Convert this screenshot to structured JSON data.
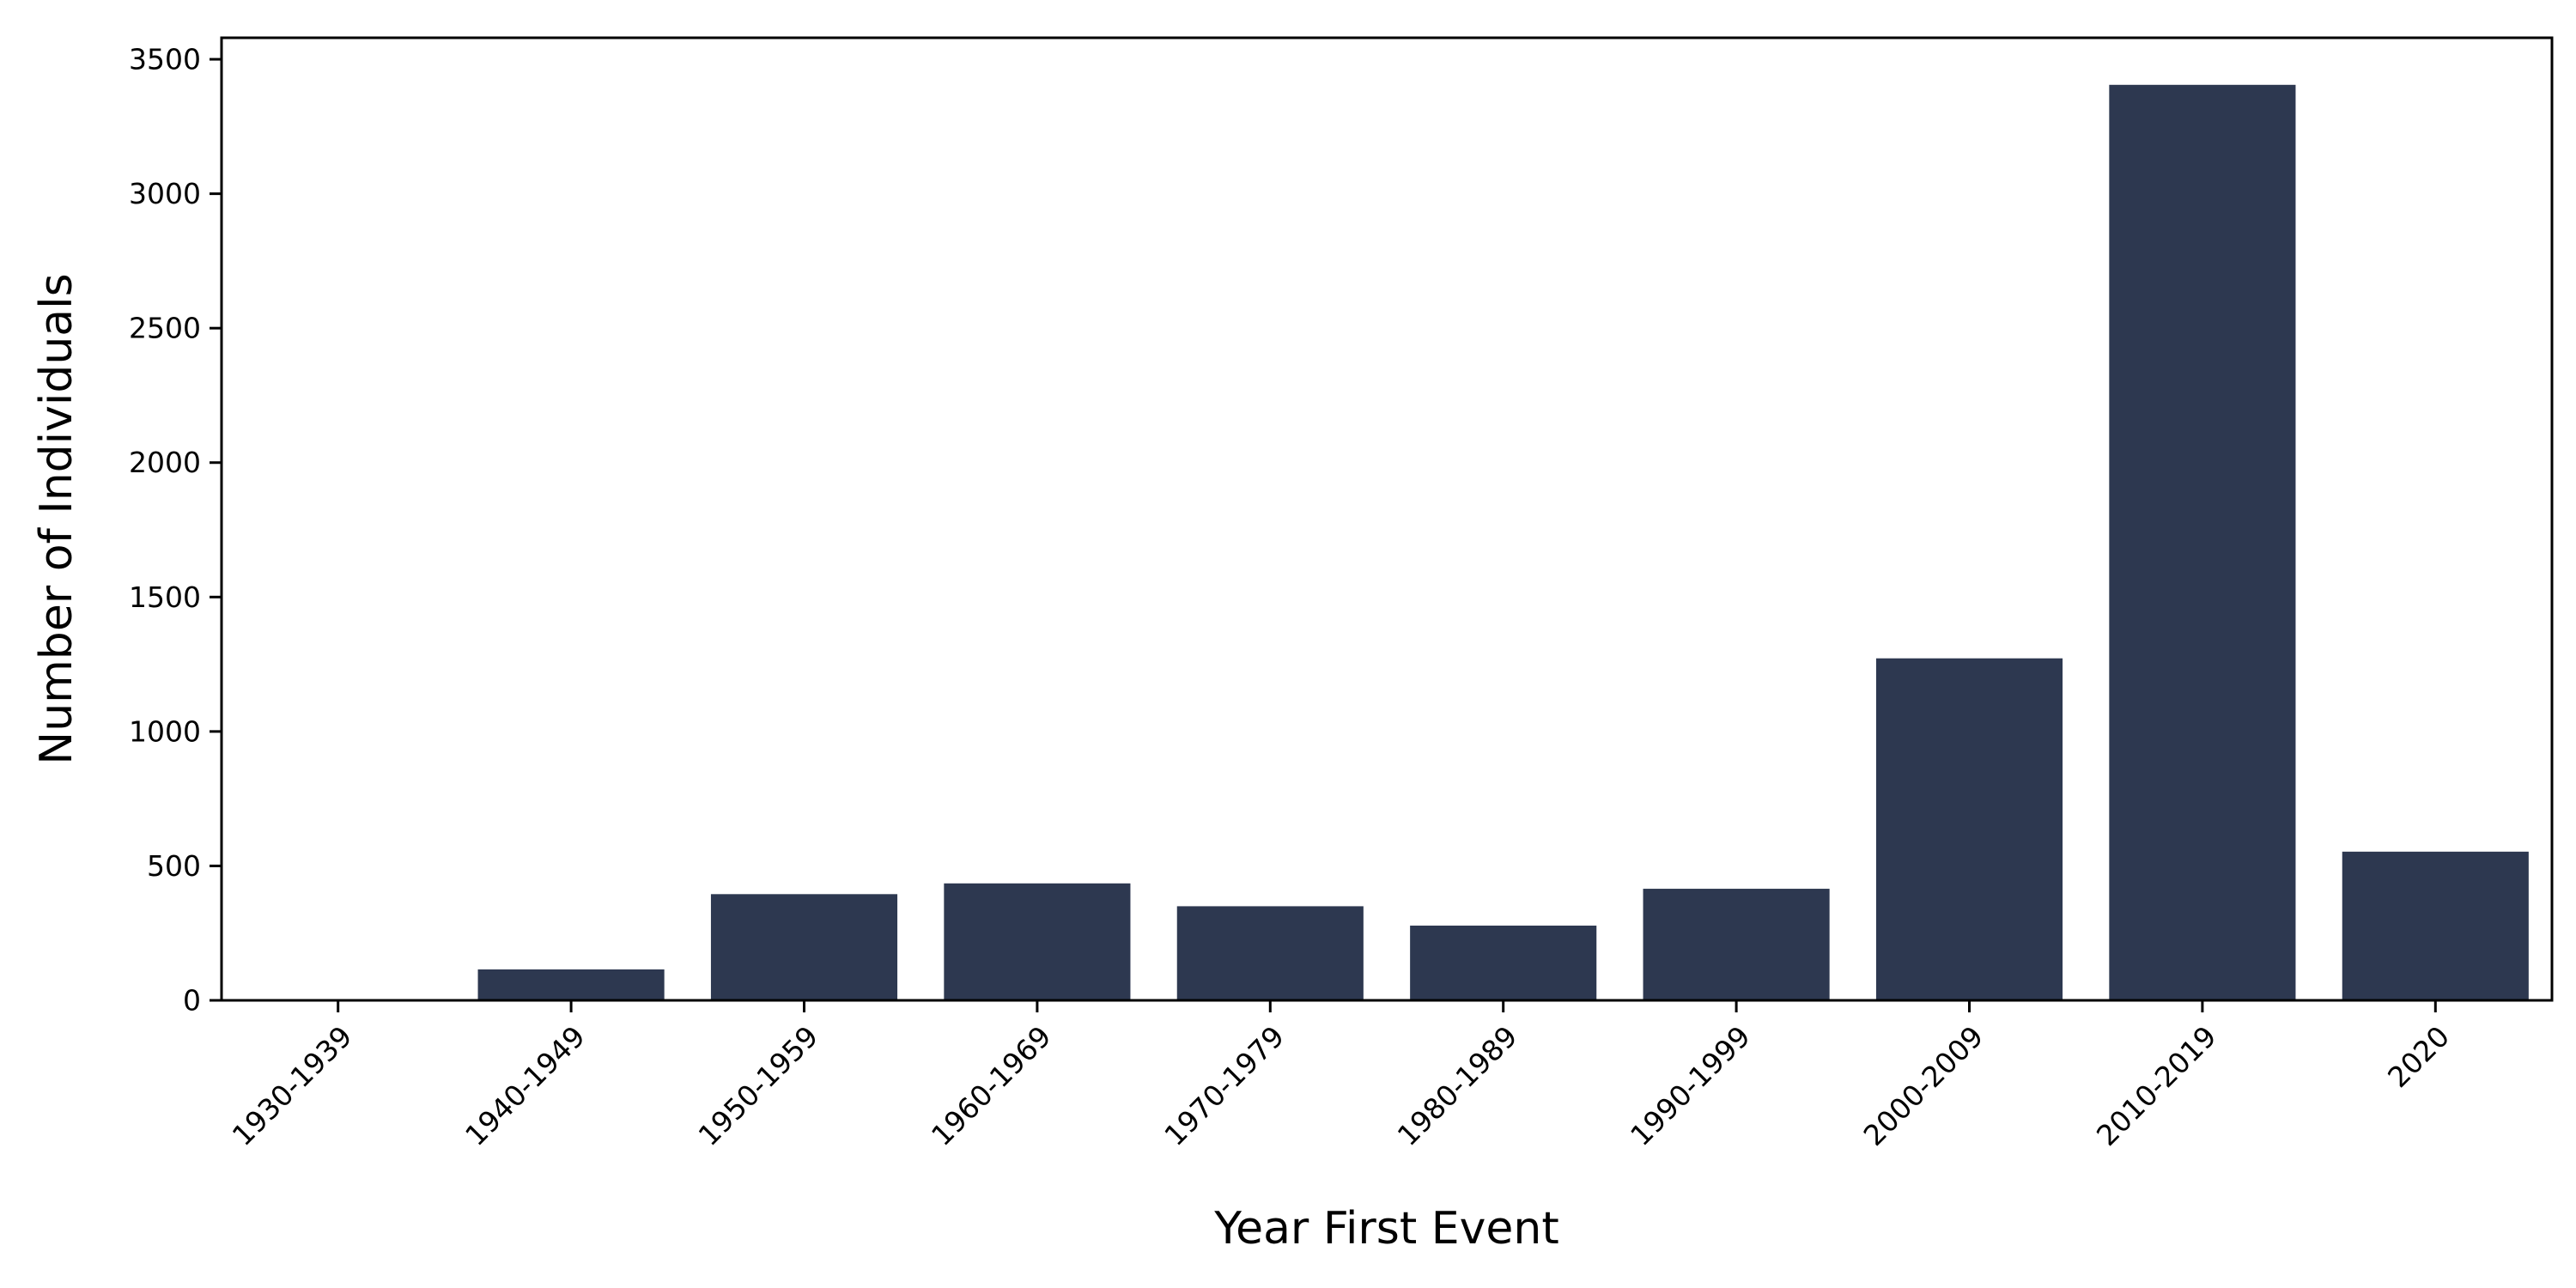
{
  "chart_data": {
    "type": "bar",
    "title": "",
    "xlabel": "Year First Event",
    "ylabel": "Number of Individuals",
    "categories": [
      "1930-1939",
      "1940-1949",
      "1950-1959",
      "1960-1969",
      "1970-1979",
      "1980-1989",
      "1990-1999",
      "2000-2009",
      "2010-2019",
      "2020"
    ],
    "values": [
      3,
      115,
      395,
      435,
      350,
      278,
      415,
      1272,
      3405,
      553
    ],
    "ylim": [
      0,
      3580
    ],
    "yticks": [
      0,
      500,
      1000,
      1500,
      2000,
      2500,
      3000,
      3500
    ],
    "ytick_labels": [
      "0",
      "500",
      "1000",
      "1500",
      "2000",
      "2500",
      "3000",
      "3500"
    ],
    "grid": false,
    "legend": "none",
    "colors": {
      "bar": "#2d3850",
      "axis": "#000000",
      "background": "#ffffff"
    }
  }
}
